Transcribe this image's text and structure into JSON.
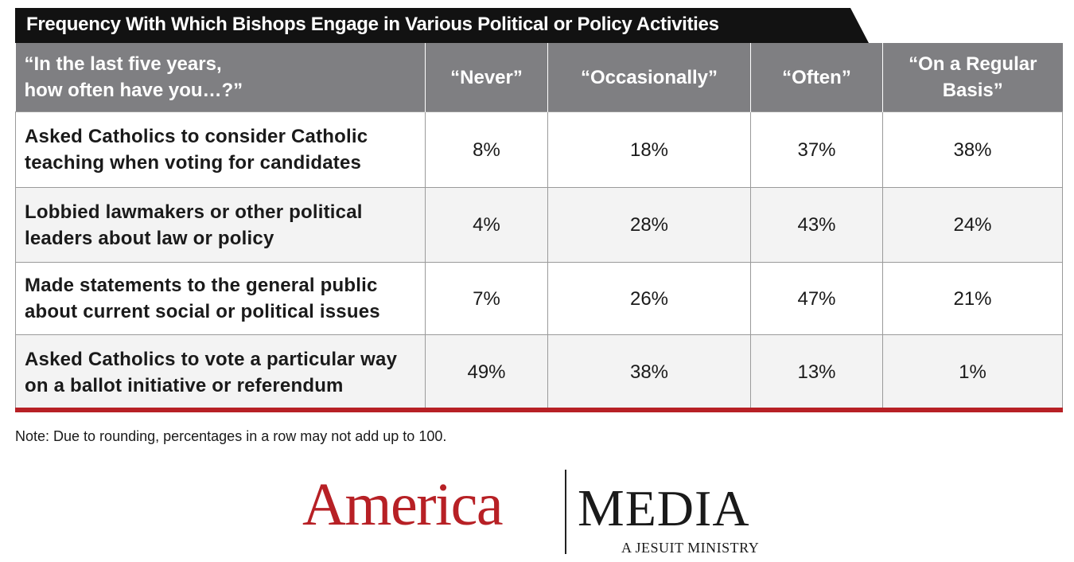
{
  "title": "Frequency With Which Bishops Engage in Various Political or Policy Activities",
  "table": {
    "question_line1": "“In the last five years,",
    "question_line2": "how often have you…?”",
    "col1": "“Never”",
    "col2": "“Occasionally”",
    "col3": "“Often”",
    "col4_line1": "“On a Regular",
    "col4_line2": "Basis”",
    "rows": [
      {
        "line1": "Asked Catholics to consider Catholic",
        "line2": "teaching when voting for candidates",
        "never": "8%",
        "occasionally": "18%",
        "often": "37%",
        "regular": "38%"
      },
      {
        "line1": "Lobbied lawmakers or other political",
        "line2": "leaders about law or policy",
        "never": "4%",
        "occasionally": "28%",
        "often": "43%",
        "regular": "24%"
      },
      {
        "line1": "Made statements to the general public",
        "line2": "about current social or political issues",
        "never": "7%",
        "occasionally": "26%",
        "often": "47%",
        "regular": "21%"
      },
      {
        "line1": "Asked Catholics to vote a particular way",
        "line2": "on a ballot initiative or referendum",
        "never": "49%",
        "occasionally": "38%",
        "often": "13%",
        "regular": "1%"
      }
    ]
  },
  "note": "Note: Due to rounding, percentages in a row may not add up to 100.",
  "logo": {
    "america": "America",
    "media_initial": "M",
    "media_rest": "EDIA",
    "tagline": "A JESUIT MINISTRY"
  },
  "colors": {
    "accent": "#b72025",
    "header_bg": "#7f7f82",
    "title_bg": "#121212"
  },
  "chart_data": {
    "type": "table",
    "title": "Frequency With Which Bishops Engage in Various Political or Policy Activities",
    "columns": [
      "“In the last five years, how often have you…?”",
      "“Never”",
      "“Occasionally”",
      "“Often”",
      "“On a Regular Basis”"
    ],
    "categories": [
      "Asked Catholics to consider Catholic teaching when voting for candidates",
      "Lobbied lawmakers or other political leaders about law or policy",
      "Made statements to the general public about current social or political issues",
      "Asked Catholics to vote a particular way on a ballot initiative or referendum"
    ],
    "series": [
      {
        "name": "“Never”",
        "values": [
          8,
          4,
          7,
          49
        ]
      },
      {
        "name": "“Occasionally”",
        "values": [
          18,
          28,
          26,
          38
        ]
      },
      {
        "name": "“Often”",
        "values": [
          37,
          43,
          47,
          13
        ]
      },
      {
        "name": "“On a Regular Basis”",
        "values": [
          38,
          24,
          21,
          1
        ]
      }
    ],
    "unit": "%"
  }
}
